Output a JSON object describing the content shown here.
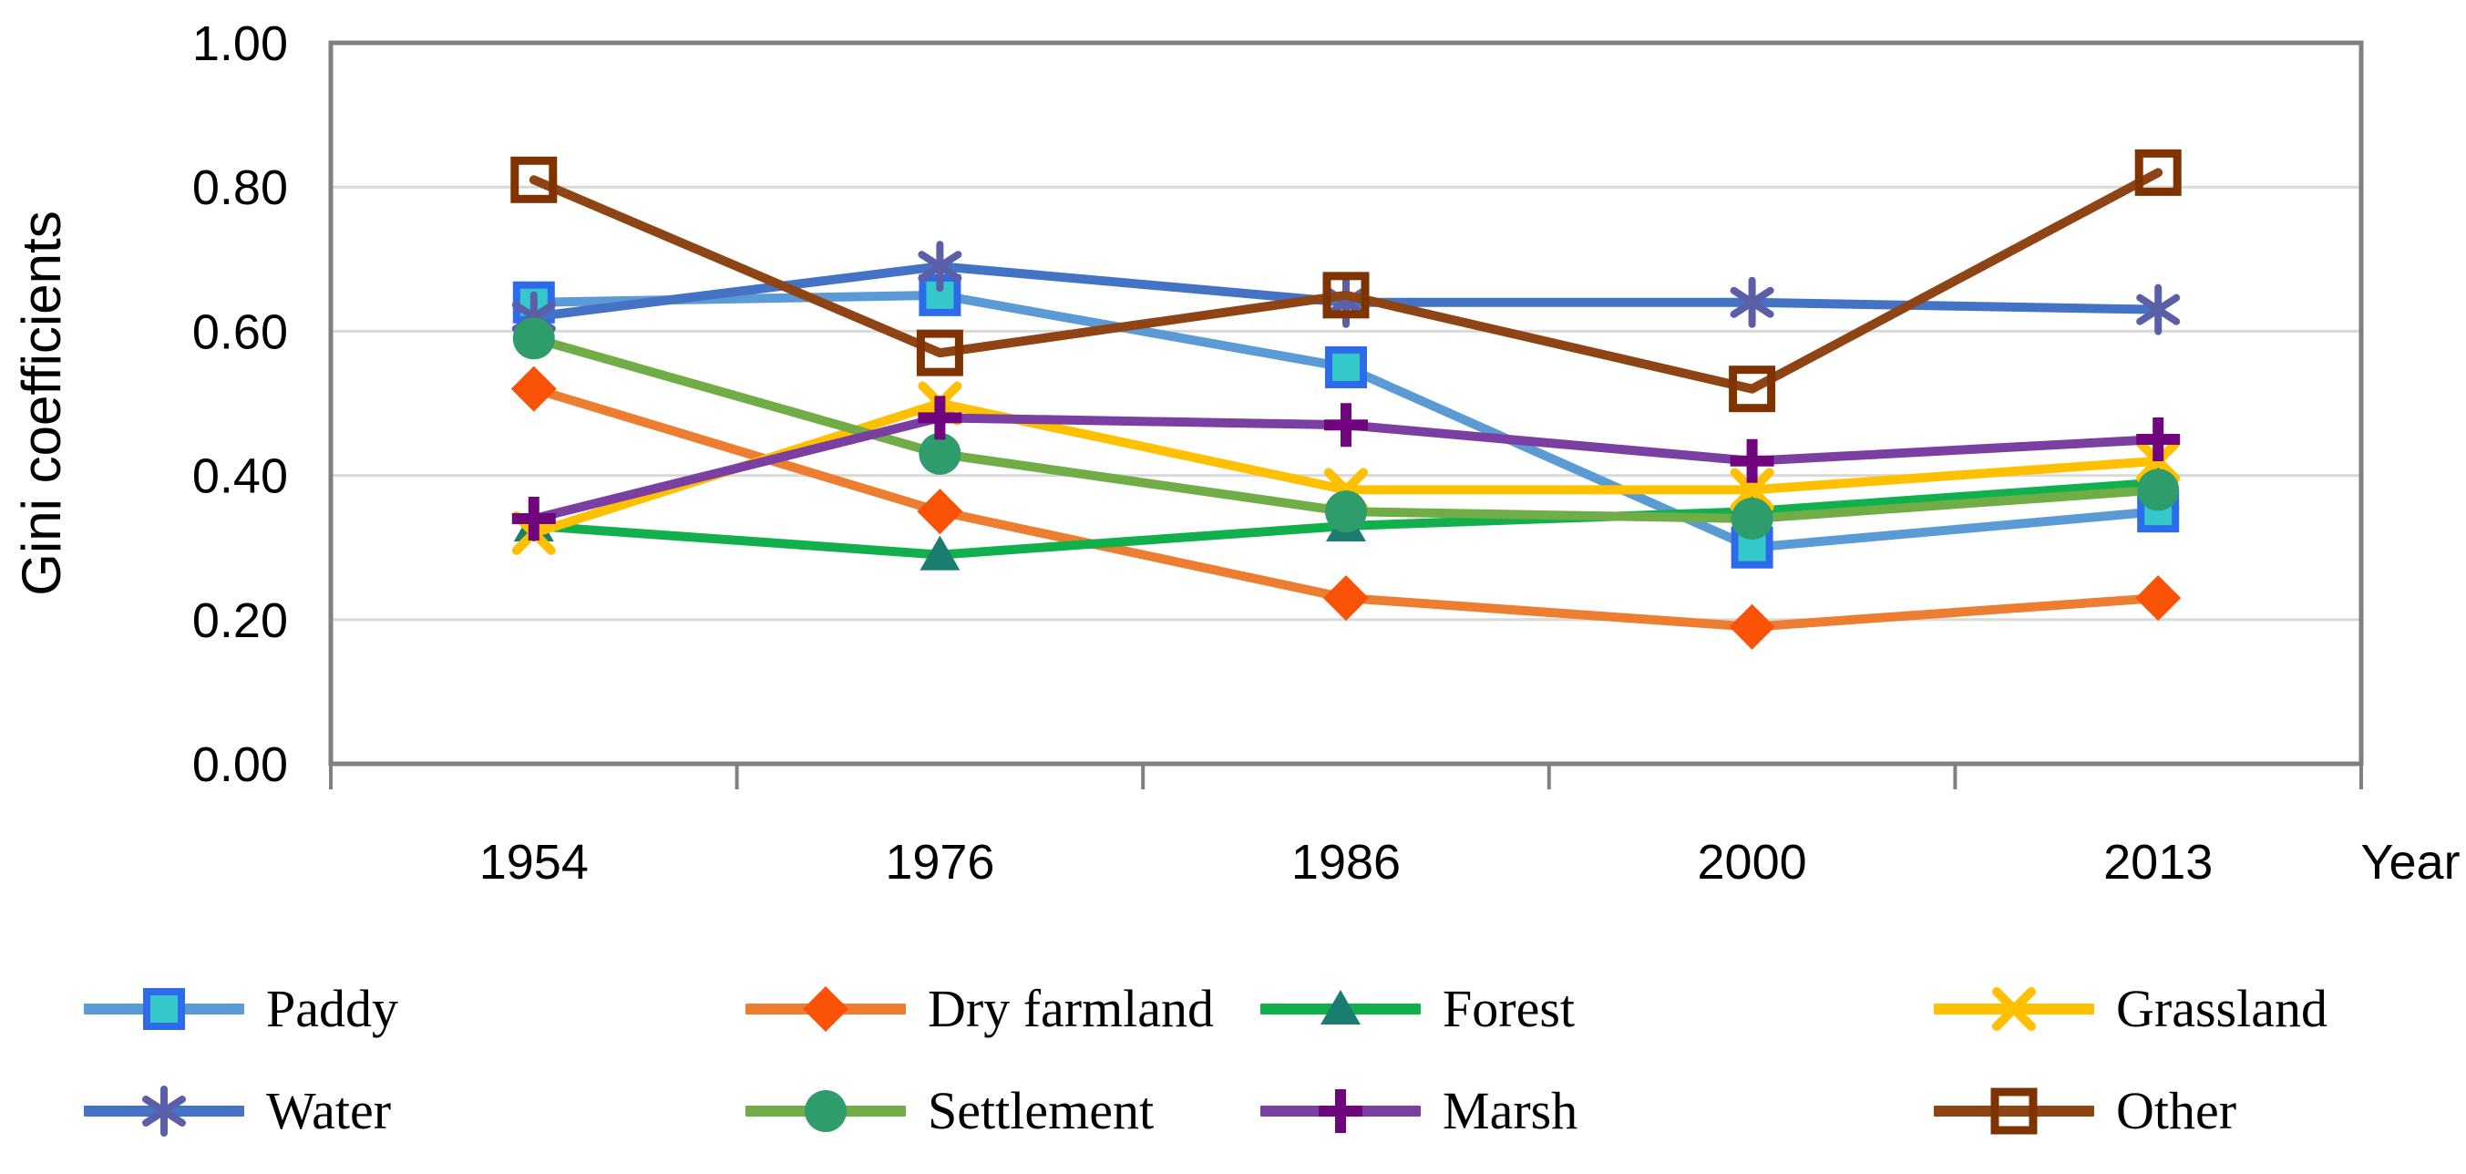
{
  "figure": {
    "background": "#ffffff",
    "plot_border_color": "#808080",
    "gridline_color": "#d9d9d9",
    "text_color": "#000000"
  },
  "axes": {
    "y_title": "Gini coefficients",
    "x_title": "Year",
    "y_tick_labels": [
      "0.00",
      "0.20",
      "0.40",
      "0.60",
      "0.80",
      "1.00"
    ],
    "x_tick_labels": [
      "1954",
      "1976",
      "1986",
      "2000",
      "2013"
    ]
  },
  "chart_data": {
    "type": "line",
    "title": "",
    "xlabel": "Year",
    "ylabel": "Gini coefficients",
    "categories": [
      "1954",
      "1976",
      "1986",
      "2000",
      "2013"
    ],
    "ylim": [
      0.0,
      1.0
    ],
    "ytick_step": 0.2,
    "grid": "horizontal",
    "legend_position": "bottom",
    "series": [
      {
        "name": "Paddy",
        "values": [
          0.64,
          0.65,
          0.55,
          0.3,
          0.35
        ],
        "line_color": "#5b9bd5",
        "marker": "square",
        "marker_color": "#35c8cb",
        "marker_stroke": "#2d6bea"
      },
      {
        "name": "Dry farmland",
        "values": [
          0.52,
          0.35,
          0.23,
          0.19,
          0.23
        ],
        "line_color": "#ed7d31",
        "marker": "diamond",
        "marker_color": "#fa5207",
        "marker_stroke": "none"
      },
      {
        "name": "Forest",
        "values": [
          0.33,
          0.29,
          0.33,
          0.35,
          0.39
        ],
        "line_color": "#12b04c",
        "marker": "triangle",
        "marker_color": "#1a7d6f",
        "marker_stroke": "none"
      },
      {
        "name": "Grassland",
        "values": [
          0.32,
          0.5,
          0.38,
          0.38,
          0.42
        ],
        "line_color": "#ffc000",
        "marker": "x",
        "marker_color": "#ffc000",
        "marker_stroke": "none"
      },
      {
        "name": "Water",
        "values": [
          0.62,
          0.69,
          0.64,
          0.64,
          0.63
        ],
        "line_color": "#4472c4",
        "marker": "asterisk",
        "marker_color": "#5a5fa8",
        "marker_stroke": "none"
      },
      {
        "name": "Settlement",
        "values": [
          0.59,
          0.43,
          0.35,
          0.34,
          0.38
        ],
        "line_color": "#70ad47",
        "marker": "circle",
        "marker_color": "#2e9c6b",
        "marker_stroke": "none"
      },
      {
        "name": "Marsh",
        "values": [
          0.34,
          0.48,
          0.47,
          0.42,
          0.45
        ],
        "line_color": "#7b3fa2",
        "marker": "plus",
        "marker_color": "#70067e",
        "marker_stroke": "none"
      },
      {
        "name": "Other",
        "values": [
          0.81,
          0.57,
          0.65,
          0.52,
          0.82
        ],
        "line_color": "#8e4415",
        "marker": "open-square",
        "marker_color": "none",
        "marker_stroke": "#7f3300"
      }
    ]
  },
  "legend": {
    "rows": 2,
    "columns": 4,
    "order_note": "row-major: Paddy, Dry farmland, Forest, Grassland / Water, Settlement, Marsh, Other"
  }
}
